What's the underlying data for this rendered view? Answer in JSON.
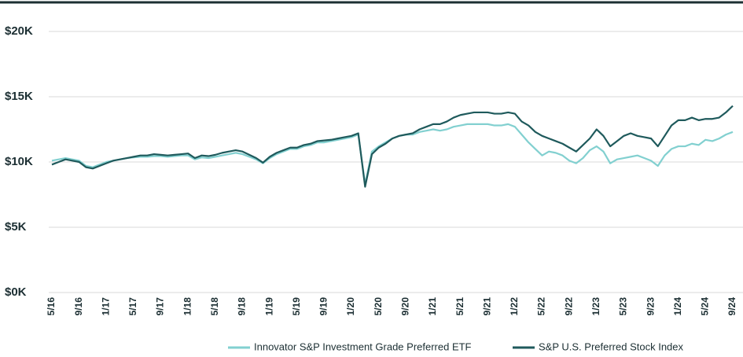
{
  "chart_data": {
    "type": "line",
    "categories": [
      "5/16",
      null,
      null,
      null,
      "9/16",
      null,
      null,
      null,
      "1/17",
      null,
      null,
      null,
      "5/17",
      null,
      null,
      null,
      "9/17",
      null,
      null,
      null,
      "1/18",
      null,
      null,
      null,
      "5/18",
      null,
      null,
      null,
      "9/18",
      null,
      null,
      null,
      "1/19",
      null,
      null,
      null,
      "5/19",
      null,
      null,
      null,
      "9/19",
      null,
      null,
      null,
      "1/20",
      null,
      null,
      null,
      "5/20",
      null,
      null,
      null,
      "9/20",
      null,
      null,
      null,
      "1/21",
      null,
      null,
      null,
      "5/21",
      null,
      null,
      null,
      "9/21",
      null,
      null,
      null,
      "1/22",
      null,
      null,
      null,
      "5/22",
      null,
      null,
      null,
      "9/22",
      null,
      null,
      null,
      "1/23",
      null,
      null,
      null,
      "5/23",
      null,
      null,
      null,
      "9/23",
      null,
      null,
      null,
      "1/24",
      null,
      null,
      null,
      "5/24",
      null,
      null,
      null,
      "9/24"
    ],
    "series": [
      {
        "name": "Innovator S&P Investment Grade Preferred ETF",
        "color": "#82d0d0",
        "values": [
          10100,
          10200,
          10300,
          10200,
          10100,
          9700,
          9600,
          9800,
          10000,
          10100,
          10200,
          10300,
          10350,
          10400,
          10400,
          10450,
          10450,
          10400,
          10450,
          10500,
          10500,
          10200,
          10350,
          10300,
          10400,
          10500,
          10600,
          10700,
          10600,
          10400,
          10200,
          9900,
          10300,
          10600,
          10800,
          11000,
          11000,
          11200,
          11300,
          11500,
          11500,
          11600,
          11700,
          11800,
          11900,
          12100,
          8300,
          10800,
          11200,
          11500,
          11800,
          12000,
          12100,
          12100,
          12300,
          12400,
          12500,
          12400,
          12500,
          12700,
          12800,
          12900,
          12900,
          12900,
          12900,
          12800,
          12800,
          12900,
          12700,
          12100,
          11500,
          11000,
          10500,
          10800,
          10700,
          10500,
          10100,
          9900,
          10300,
          10900,
          11200,
          10800,
          9900,
          10200,
          10300,
          10400,
          10500,
          10300,
          10100,
          9700,
          10500,
          11000,
          11200,
          11200,
          11400,
          11300,
          11700,
          11600,
          11800,
          12100,
          12300
        ]
      },
      {
        "name": "S&P U.S. Preferred Stock Index",
        "color": "#1f5a5c",
        "values": [
          9800,
          10000,
          10200,
          10100,
          10000,
          9600,
          9500,
          9700,
          9900,
          10100,
          10200,
          10300,
          10400,
          10500,
          10500,
          10600,
          10550,
          10500,
          10550,
          10600,
          10650,
          10300,
          10500,
          10450,
          10550,
          10700,
          10800,
          10900,
          10800,
          10550,
          10300,
          9950,
          10400,
          10700,
          10900,
          11100,
          11100,
          11300,
          11400,
          11600,
          11650,
          11700,
          11800,
          11900,
          12000,
          12200,
          8100,
          10600,
          11100,
          11400,
          11800,
          12000,
          12100,
          12200,
          12500,
          12700,
          12900,
          12900,
          13100,
          13400,
          13600,
          13700,
          13800,
          13800,
          13800,
          13700,
          13700,
          13800,
          13700,
          13100,
          12800,
          12300,
          12000,
          11800,
          11600,
          11400,
          11100,
          10800,
          11300,
          11800,
          12500,
          12000,
          11200,
          11600,
          12000,
          12200,
          12000,
          11900,
          11800,
          11200,
          12000,
          12800,
          13200,
          13200,
          13400,
          13200,
          13300,
          13300,
          13400,
          13800,
          14300
        ]
      }
    ],
    "ylim": [
      0,
      20000
    ],
    "yticks": [
      {
        "value": 0,
        "label": "$0K"
      },
      {
        "value": 5000,
        "label": "$5K"
      },
      {
        "value": 10000,
        "label": "$10K"
      },
      {
        "value": 15000,
        "label": "$15K"
      },
      {
        "value": 20000,
        "label": "$20K"
      }
    ],
    "grid": true
  }
}
